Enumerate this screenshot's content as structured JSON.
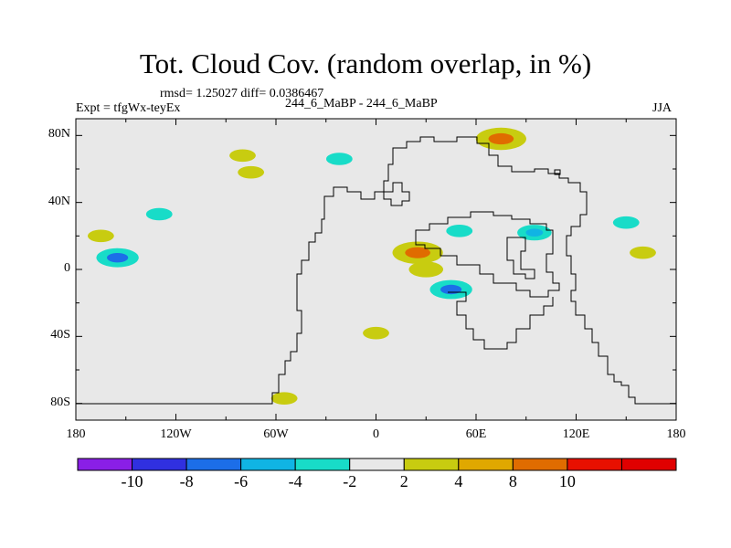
{
  "title": "Tot. Cloud Cov. (random overlap, in %)",
  "stats": "rmsd= 1.25027 diff= 0.0386467",
  "left_label": "Expt = tfgWx-teyEx",
  "center_label": "244_6_MaBP - 244_6_MaBP",
  "season": "JJA",
  "lat_ticks": [
    {
      "label": "80N",
      "value": 80
    },
    {
      "label": "40N",
      "value": 40
    },
    {
      "label": "0",
      "value": 0
    },
    {
      "label": "40S",
      "value": -40
    },
    {
      "label": "80S",
      "value": -80
    }
  ],
  "lon_ticks": [
    {
      "label": "180",
      "value": -180
    },
    {
      "label": "120W",
      "value": -120
    },
    {
      "label": "60W",
      "value": -60
    },
    {
      "label": "0",
      "value": 0
    },
    {
      "label": "60E",
      "value": 60
    },
    {
      "label": "120E",
      "value": 120
    },
    {
      "label": "180",
      "value": 180
    }
  ],
  "colorbar": {
    "colors": [
      "#8a1fe6",
      "#3030e0",
      "#1c6ee8",
      "#10b4e4",
      "#18dcc8",
      "#e8e8e8",
      "#c8cc10",
      "#e0a800",
      "#e06c00",
      "#e81000",
      "#e00000"
    ],
    "labels": [
      "-10",
      "-8",
      "-6",
      "-4",
      "-2",
      "2",
      "4",
      "8",
      "10"
    ]
  },
  "chart_data": {
    "type": "heatmap",
    "title": "Tot. Cloud Cov. (random overlap, in %)",
    "projection": "cylindrical-equidistant",
    "lon_range": [
      -180,
      180
    ],
    "lat_range": [
      -90,
      90
    ],
    "contour_levels": [
      -10,
      -8,
      -6,
      -4,
      -2,
      2,
      4,
      8,
      10
    ],
    "units": "%",
    "rmsd": 1.25027,
    "diff": 0.0386467,
    "background_value_range": [
      -2,
      2
    ],
    "anomaly_patches": [
      {
        "lon": -155,
        "lat": 7,
        "level": -6
      },
      {
        "lon": -165,
        "lat": 20,
        "level": 2
      },
      {
        "lon": -130,
        "lat": 33,
        "level": -2
      },
      {
        "lon": -80,
        "lat": 68,
        "level": 2
      },
      {
        "lon": -75,
        "lat": 58,
        "level": 2
      },
      {
        "lon": -22,
        "lat": 66,
        "level": -2
      },
      {
        "lon": 25,
        "lat": 10,
        "level": 8
      },
      {
        "lon": 30,
        "lat": 0,
        "level": 4
      },
      {
        "lon": 45,
        "lat": -12,
        "level": -6
      },
      {
        "lon": 50,
        "lat": 23,
        "level": -2
      },
      {
        "lon": 75,
        "lat": 78,
        "level": 8
      },
      {
        "lon": 95,
        "lat": 22,
        "level": -4
      },
      {
        "lon": 0,
        "lat": -38,
        "level": 2
      },
      {
        "lon": -55,
        "lat": -77,
        "level": 2
      },
      {
        "lon": 160,
        "lat": 10,
        "level": 2
      },
      {
        "lon": 150,
        "lat": 28,
        "level": -2
      }
    ]
  }
}
